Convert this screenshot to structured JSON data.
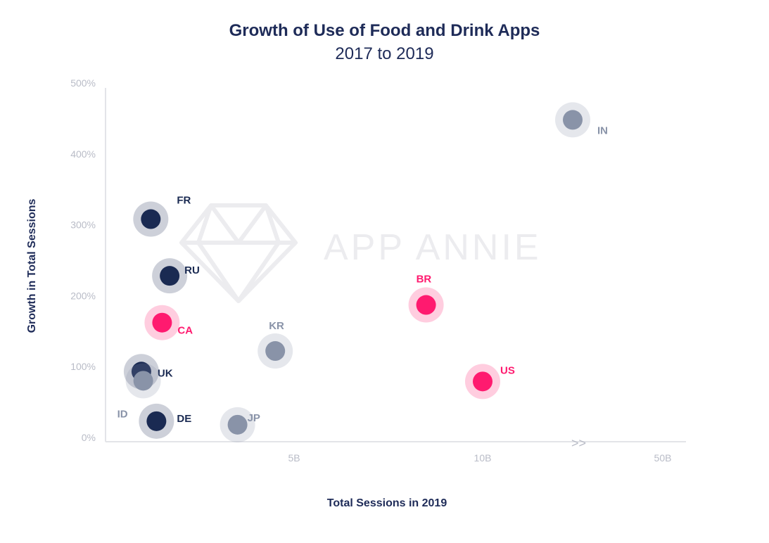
{
  "chart_data": {
    "type": "scatter",
    "title": "Growth of Use of Food and Drink Apps",
    "subtitle": "2017 to 2019",
    "xlabel": "Total Sessions in 2019",
    "ylabel": "Growth in Total Sessions",
    "y_ticks": [
      "0%",
      "100%",
      "200%",
      "300%",
      "400%",
      "500%"
    ],
    "ylim": [
      0,
      500
    ],
    "x_ticks": [
      "5B",
      "10B",
      "50B"
    ],
    "x_scale": "broken-linear",
    "x_break_marker": ">>",
    "watermark": "APP ANNIE",
    "points": [
      {
        "label": "FR",
        "x": 1.2,
        "y": 308,
        "color": "#1a2a52"
      },
      {
        "label": "RU",
        "x": 1.7,
        "y": 228,
        "color": "#1a2a52"
      },
      {
        "label": "CA",
        "x": 1.5,
        "y": 162,
        "color": "#ff1a6f"
      },
      {
        "label": "UK",
        "x": 0.95,
        "y": 93,
        "color": "#1a2a52"
      },
      {
        "label": "ID",
        "x": 1.0,
        "y": 80,
        "color": "#8993a8"
      },
      {
        "label": "DE",
        "x": 1.35,
        "y": 23,
        "color": "#1a2a52"
      },
      {
        "label": "JP",
        "x": 3.5,
        "y": 18,
        "color": "#8993a8"
      },
      {
        "label": "KR",
        "x": 4.5,
        "y": 122,
        "color": "#8993a8"
      },
      {
        "label": "BR",
        "x": 8.5,
        "y": 187,
        "color": "#ff1a6f"
      },
      {
        "label": "US",
        "x": 10.0,
        "y": 79,
        "color": "#ff1a6f"
      },
      {
        "label": "IN",
        "x": 30,
        "y": 448,
        "color": "#8993a8"
      }
    ]
  }
}
